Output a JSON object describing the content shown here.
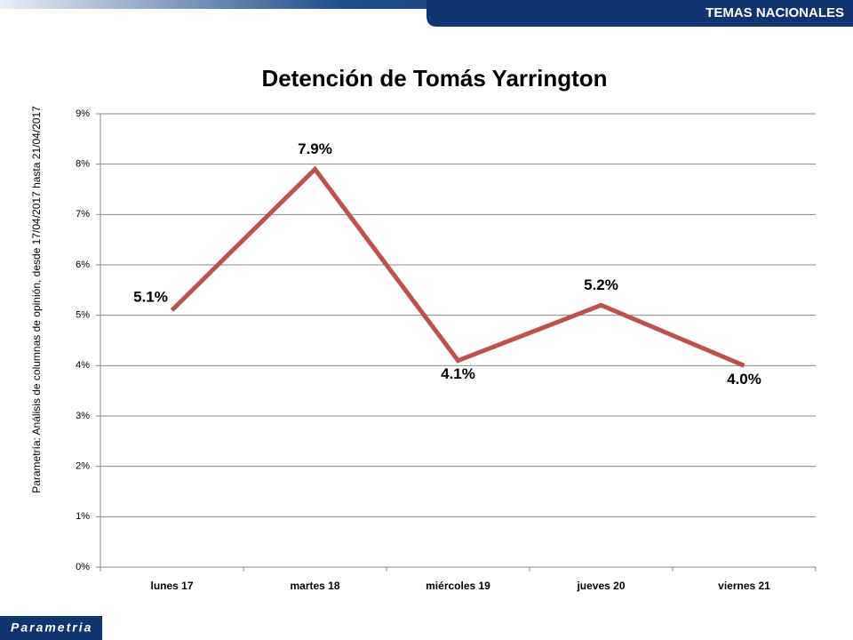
{
  "header": {
    "section": "TEMAS NACIONALES"
  },
  "source_note": "Parametría: Análisis de columnas de opinión, desde 17/04/2017 hasta 21/04/2017",
  "footer": {
    "logo": "Parametria"
  },
  "chart_data": {
    "type": "line",
    "title": "Detención de Tomás Yarrington",
    "categories": [
      "lunes 17",
      "martes 18",
      "miércoles 19",
      "jueves 20",
      "viernes 21"
    ],
    "series": [
      {
        "name": "Detención de Tomás Yarrington",
        "color": "#c0504d",
        "values": [
          5.1,
          7.9,
          4.1,
          5.2,
          4.0
        ],
        "value_labels": [
          "5.1%",
          "7.9%",
          "4.1%",
          "5.2%",
          "4.0%"
        ]
      }
    ],
    "ylim": [
      0,
      9
    ],
    "yticks": [
      {
        "value": 0,
        "label": "0%"
      },
      {
        "value": 1,
        "label": "1%"
      },
      {
        "value": 2,
        "label": "2%"
      },
      {
        "value": 3,
        "label": "3%"
      },
      {
        "value": 4,
        "label": "4%"
      },
      {
        "value": 5,
        "label": "5%"
      },
      {
        "value": 6,
        "label": "6%"
      },
      {
        "value": 7,
        "label": "7%"
      },
      {
        "value": 8,
        "label": "8%"
      },
      {
        "value": 9,
        "label": "9%"
      }
    ],
    "grid": true
  }
}
